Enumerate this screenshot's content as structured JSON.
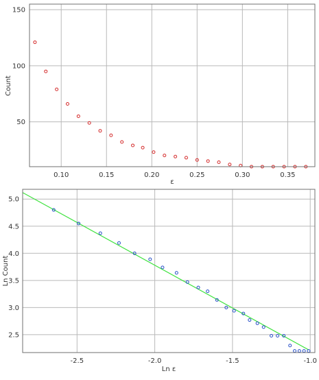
{
  "colors": {
    "grid": "#b9b9b9",
    "frame": "#6f6f6f",
    "top_marker": "#d42a2a",
    "bottom_marker": "#2850c8",
    "fit_line": "#3ee23e"
  },
  "chart_data": [
    {
      "type": "scatter",
      "title": "",
      "xlabel": "ε",
      "ylabel": "Count",
      "xlim": [
        0.065,
        0.38
      ],
      "ylim": [
        10,
        155
      ],
      "xticks": [
        0.1,
        0.15,
        0.2,
        0.25,
        0.3,
        0.35
      ],
      "xtick_labels": [
        "0.10",
        "0.15",
        "0.20",
        "0.25",
        "0.30",
        "0.35"
      ],
      "yticks": [
        50,
        100,
        150
      ],
      "ytick_labels": [
        "50",
        "100",
        "150"
      ],
      "grid": true,
      "marker": "circle",
      "series": [
        {
          "color": "#d42a2a",
          "x": [
            0.071,
            0.083,
            0.095,
            0.107,
            0.119,
            0.131,
            0.143,
            0.155,
            0.167,
            0.179,
            0.19,
            0.202,
            0.214,
            0.226,
            0.238,
            0.25,
            0.262,
            0.274,
            0.286,
            0.298,
            0.31,
            0.322,
            0.334,
            0.346,
            0.358,
            0.37
          ],
          "y": [
            121,
            95,
            79,
            66,
            55,
            49,
            42,
            38,
            32,
            29,
            27,
            23,
            20,
            19,
            18,
            16,
            15,
            14,
            12,
            11,
            10,
            10,
            10,
            10,
            10,
            10
          ]
        }
      ]
    },
    {
      "type": "scatter",
      "title": "",
      "xlabel": "Ln ε",
      "ylabel": "Ln Count",
      "xlim": [
        -2.85,
        -0.97
      ],
      "ylim": [
        2.17,
        5.18
      ],
      "xticks": [
        -2.5,
        -2.0,
        -1.5,
        -1.0
      ],
      "xtick_labels": [
        "-2.5",
        "-2.0",
        "-1.5",
        "-1.0"
      ],
      "yticks": [
        2.5,
        3.0,
        3.5,
        4.0,
        4.5,
        5.0
      ],
      "ytick_labels": [
        "2.5",
        "3.0",
        "3.5",
        "4.0",
        "4.5",
        "5.0"
      ],
      "grid": true,
      "marker": "circle",
      "series": [
        {
          "color": "#2850c8",
          "x": [
            -2.65,
            -2.49,
            -2.35,
            -2.23,
            -2.13,
            -2.03,
            -1.95,
            -1.86,
            -1.79,
            -1.72,
            -1.66,
            -1.6,
            -1.54,
            -1.49,
            -1.43,
            -1.39,
            -1.34,
            -1.3,
            -1.25,
            -1.21,
            -1.17,
            -1.13,
            -1.1,
            -1.07,
            -1.04,
            -1.01
          ],
          "y": [
            4.8,
            4.55,
            4.37,
            4.19,
            4.0,
            3.89,
            3.74,
            3.64,
            3.47,
            3.37,
            3.3,
            3.14,
            3.0,
            2.94,
            2.89,
            2.77,
            2.71,
            2.64,
            2.48,
            2.48,
            2.48,
            2.3,
            2.2,
            2.2,
            2.2,
            2.2
          ]
        }
      ],
      "fit_line": {
        "color": "#3ee23e",
        "x": [
          -2.85,
          -1.01
        ],
        "y": [
          5.12,
          2.22
        ]
      }
    }
  ]
}
